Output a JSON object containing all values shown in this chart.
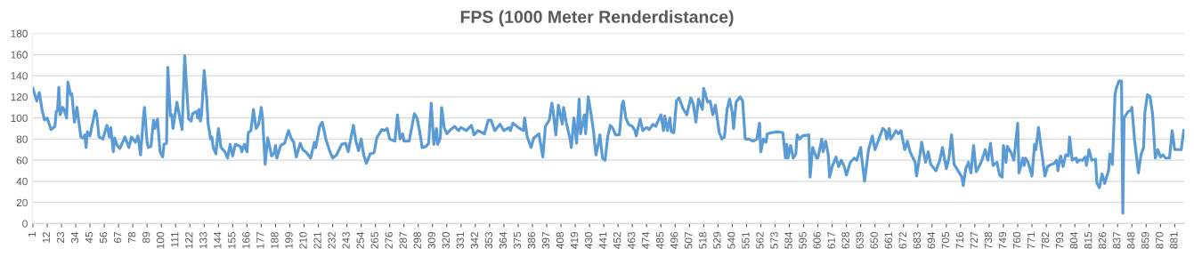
{
  "chart_data": {
    "type": "line",
    "title": "FPS (1000 Meter Renderdistance)",
    "x": [
      1,
      4,
      6,
      8,
      10,
      12,
      15,
      18,
      19,
      20,
      21,
      22,
      24,
      25,
      27,
      28,
      30,
      31,
      33,
      35,
      36,
      38,
      40,
      41,
      42,
      43,
      45,
      49,
      50,
      52,
      55,
      58,
      60,
      61,
      63,
      64,
      66,
      68,
      72,
      75,
      77,
      80,
      82,
      84,
      86,
      87,
      89,
      90,
      92,
      94,
      95,
      97,
      99,
      101,
      102,
      104,
      105,
      107,
      108,
      109,
      112,
      113,
      116,
      118,
      121,
      123,
      124,
      127,
      128,
      129,
      130,
      131,
      133,
      135,
      136,
      138,
      139,
      140,
      142,
      144,
      146,
      149,
      151,
      153,
      155,
      157,
      161,
      162,
      164,
      166,
      167,
      169,
      171,
      173,
      175,
      177,
      178,
      180,
      182,
      185,
      187,
      188,
      189,
      192,
      195,
      198,
      200,
      202,
      204,
      207,
      209,
      212,
      215,
      218,
      219,
      222,
      224,
      227,
      230,
      232,
      235,
      239,
      242,
      244,
      248,
      250,
      252,
      254,
      256,
      258,
      261,
      264,
      266,
      270,
      272,
      274,
      276,
      280,
      282,
      284,
      286,
      287,
      291,
      295,
      297,
      299,
      301,
      304,
      306,
      308,
      310,
      312,
      313,
      315,
      316,
      318,
      320,
      323,
      326,
      329,
      331,
      335,
      339,
      341,
      344,
      349,
      352,
      354,
      357,
      361,
      364,
      368,
      369,
      371,
      375,
      379,
      380,
      382,
      385,
      387,
      391,
      394,
      396,
      399,
      401,
      402,
      404,
      406,
      409,
      410,
      412,
      415,
      416,
      418,
      420,
      422,
      423,
      426,
      427,
      429,
      431,
      433,
      434,
      435,
      437,
      438,
      440,
      442,
      444,
      446,
      448,
      450,
      453,
      455,
      456,
      458,
      460,
      463,
      465,
      466,
      469,
      471,
      474,
      476,
      479,
      481,
      485,
      487,
      488,
      490,
      492,
      493,
      495,
      497,
      499,
      502,
      505,
      508,
      510,
      512,
      514,
      517,
      518,
      521,
      523,
      525,
      527,
      530,
      532,
      534,
      536,
      538,
      540,
      541,
      543,
      546,
      548,
      550,
      553,
      556,
      559,
      561,
      562,
      564,
      566,
      567,
      570,
      575,
      579,
      581,
      582,
      583,
      585,
      587,
      589,
      590,
      592,
      594,
      599,
      600,
      602,
      605,
      606,
      609,
      610,
      612,
      614,
      615,
      617,
      620,
      622,
      624,
      626,
      628,
      631,
      634,
      636,
      639,
      640,
      642,
      645,
      648,
      650,
      653,
      656,
      658,
      659,
      661,
      662,
      664,
      666,
      668,
      670,
      673,
      675,
      677,
      679,
      681,
      682,
      684,
      686,
      689,
      691,
      693,
      697,
      700,
      702,
      705,
      707,
      709,
      711,
      715,
      717,
      718,
      720,
      722,
      724,
      726,
      728,
      731,
      733,
      735,
      737,
      739,
      741,
      744,
      746,
      748,
      749,
      751,
      752,
      755,
      757,
      760,
      761,
      764,
      765,
      766,
      768,
      771,
      773,
      774,
      776,
      778,
      781,
      783,
      786,
      788,
      790,
      791,
      793,
      795,
      797,
      799,
      800,
      802,
      805,
      806,
      807,
      810,
      812,
      813,
      815,
      817,
      820,
      821,
      823,
      825,
      827,
      830,
      831,
      833,
      835,
      836,
      838,
      840,
      841,
      842,
      845,
      847,
      848,
      850,
      853,
      855,
      857,
      858,
      860,
      862,
      864,
      866,
      868,
      870,
      872,
      874,
      877,
      879,
      881,
      886,
      888
    ],
    "series": [
      {
        "color": "#5b9bd5",
        "values": [
          128,
          116,
          124,
          108,
          98,
          100,
          89,
          92,
          106,
          107,
          129,
          103,
          110,
          108,
          100,
          134,
          122,
          123,
          96,
          110,
          100,
          82,
          81,
          84,
          72,
          87,
          83,
          107,
          104,
          82,
          80,
          93,
          82,
          91,
          68,
          81,
          74,
          71,
          82,
          72,
          82,
          77,
          83,
          65,
          98,
          110,
          77,
          72,
          73,
          98,
          90,
          99,
          68,
          63,
          75,
          76,
          148,
          102,
          103,
          90,
          115,
          108,
          89,
          159,
          99,
          97,
          104,
          106,
          100,
          108,
          97,
          103,
          145,
          118,
          95,
          80,
          82,
          72,
          66,
          90,
          72,
          68,
          62,
          75,
          64,
          75,
          73,
          68,
          75,
          68,
          86,
          88,
          108,
          90,
          94,
          110,
          100,
          56,
          81,
          64,
          67,
          74,
          62,
          74,
          76,
          88,
          81,
          77,
          63,
          76,
          70,
          67,
          62,
          77,
          72,
          92,
          96,
          79,
          68,
          62,
          65,
          75,
          76,
          68,
          93,
          78,
          69,
          80,
          65,
          57,
          66,
          67,
          81,
          89,
          88,
          90,
          80,
          78,
          103,
          80,
          85,
          78,
          78,
          104,
          100,
          88,
          72,
          73,
          76,
          114,
          75,
          90,
          75,
          81,
          110,
          91,
          85,
          89,
          92,
          88,
          91,
          88,
          93,
          84,
          88,
          85,
          98,
          98,
          88,
          94,
          88,
          91,
          88,
          95,
          91,
          88,
          100,
          82,
          72,
          81,
          85,
          63,
          92,
          98,
          114,
          106,
          84,
          112,
          94,
          110,
          96,
          80,
          72,
          100,
          76,
          118,
          85,
          103,
          85,
          120,
          105,
          88,
          76,
          65,
          77,
          84,
          62,
          60,
          82,
          93,
          90,
          84,
          84,
          112,
          116,
          100,
          94,
          92,
          88,
          83,
          99,
          88,
          91,
          89,
          94,
          92,
          103,
          88,
          102,
          88,
          100,
          87,
          86,
          116,
          119,
          109,
          103,
          119,
          113,
          96,
          118,
          108,
          128,
          115,
          116,
          103,
          112,
          86,
          80,
          82,
          108,
          118,
          105,
          90,
          115,
          120,
          116,
          80,
          80,
          78,
          80,
          95,
          68,
          80,
          77,
          85,
          86,
          87,
          86,
          62,
          75,
          62,
          74,
          62,
          66,
          84,
          80,
          83,
          84,
          44,
          72,
          62,
          62,
          80,
          68,
          78,
          65,
          44,
          54,
          63,
          54,
          60,
          55,
          46,
          58,
          62,
          60,
          72,
          60,
          40,
          70,
          83,
          70,
          80,
          90,
          88,
          80,
          90,
          80,
          83,
          88,
          85,
          88,
          70,
          78,
          68,
          63,
          58,
          45,
          60,
          77,
          58,
          68,
          56,
          50,
          60,
          72,
          52,
          62,
          84,
          56,
          48,
          44,
          36,
          52,
          58,
          48,
          74,
          49,
          56,
          62,
          70,
          60,
          76,
          55,
          58,
          46,
          44,
          74,
          58,
          73,
          67,
          60,
          95,
          48,
          62,
          55,
          62,
          58,
          45,
          75,
          70,
          91,
          72,
          45,
          54,
          56,
          57,
          60,
          50,
          64,
          54,
          65,
          64,
          82,
          60,
          62,
          58,
          60,
          60,
          63,
          55,
          70,
          60,
          61,
          38,
          34,
          47,
          38,
          50,
          66,
          56,
          122,
          128,
          135,
          135,
          10,
          100,
          106,
          107,
          110,
          80,
          48,
          65,
          72,
          105,
          122,
          120,
          103,
          62,
          70,
          63,
          65,
          62,
          62,
          88,
          70,
          70,
          88
        ]
      }
    ],
    "xlim": [
      0.5,
      888.5
    ],
    "xticks": [
      1,
      12,
      23,
      34,
      45,
      56,
      67,
      78,
      89,
      100,
      111,
      122,
      133,
      144,
      155,
      166,
      177,
      188,
      199,
      210,
      221,
      232,
      243,
      254,
      265,
      276,
      287,
      298,
      309,
      320,
      331,
      342,
      353,
      364,
      375,
      386,
      397,
      408,
      419,
      430,
      441,
      452,
      463,
      474,
      485,
      496,
      507,
      518,
      529,
      540,
      551,
      562,
      573,
      584,
      595,
      606,
      617,
      628,
      639,
      650,
      661,
      672,
      683,
      694,
      705,
      716,
      727,
      738,
      749,
      760,
      771,
      782,
      793,
      804,
      815,
      826,
      837,
      848,
      859,
      870,
      881
    ],
    "ylim": [
      0,
      180
    ],
    "yticks": [
      0,
      20,
      40,
      60,
      80,
      100,
      120,
      140,
      160,
      180
    ],
    "grid": "y",
    "legend": false,
    "marker": "none",
    "line_style": "solid"
  }
}
